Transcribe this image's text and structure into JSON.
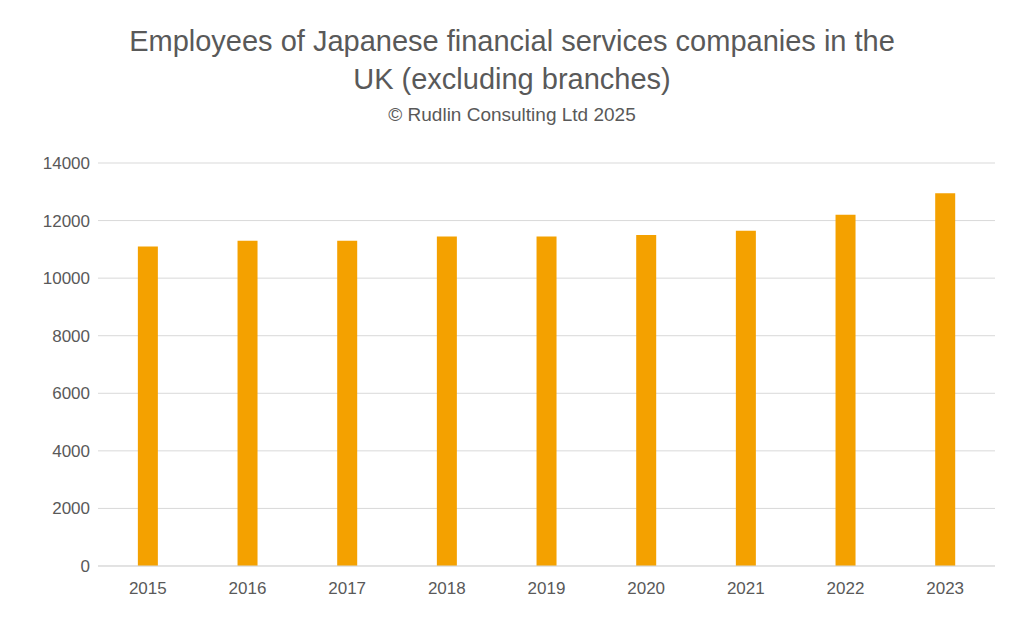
{
  "chart_data": {
    "type": "bar",
    "title": "Employees of Japanese financial services companies in the UK (excluding branches)",
    "subtitle": "© Rudlin Consulting Ltd 2025",
    "categories": [
      "2015",
      "2016",
      "2017",
      "2018",
      "2019",
      "2020",
      "2021",
      "2022",
      "2023"
    ],
    "values": [
      11100,
      11300,
      11300,
      11450,
      11450,
      11500,
      11650,
      12200,
      12950
    ],
    "color": "#f4a100",
    "ylim": [
      0,
      14000
    ],
    "yticks": [
      0,
      2000,
      4000,
      6000,
      8000,
      10000,
      12000,
      14000
    ],
    "grid": true
  }
}
